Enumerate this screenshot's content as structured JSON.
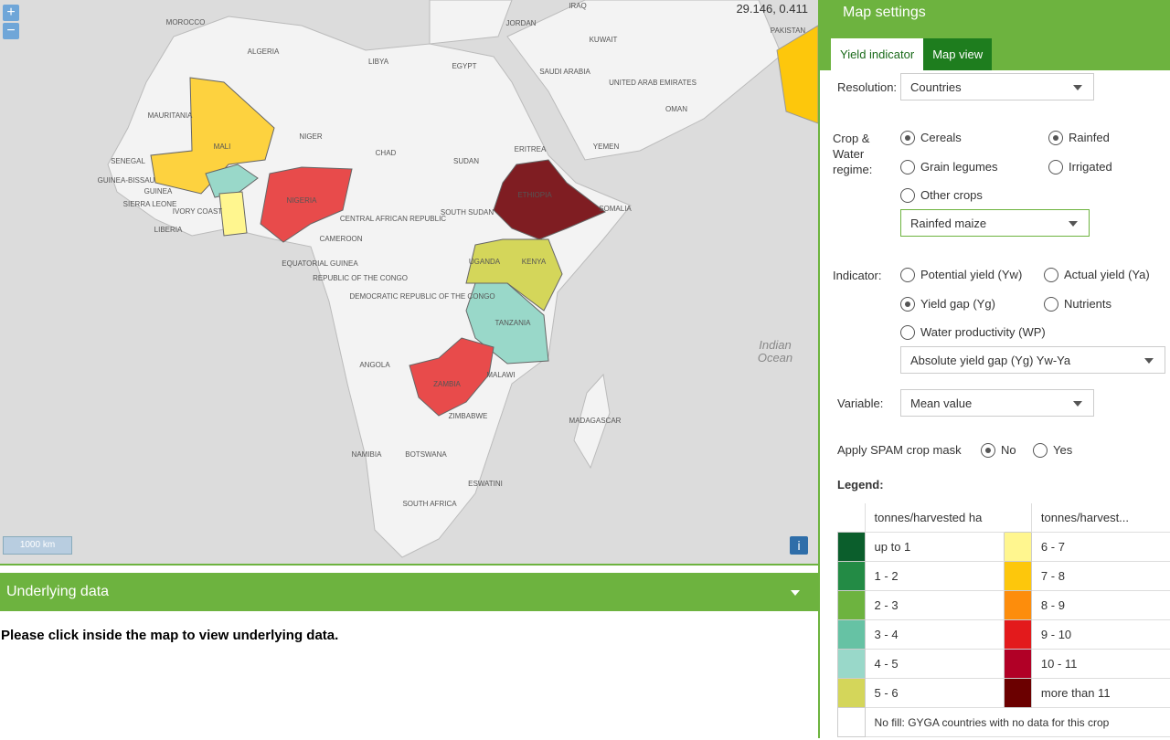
{
  "map": {
    "coords": "29.146, 0.411",
    "zoom_in": "+",
    "zoom_out": "−",
    "scale": "1000 km",
    "info": "i",
    "ocean": [
      "Indian",
      "Ocean"
    ],
    "labels": [
      "MOROCCO",
      "ALGERIA",
      "LIBYA",
      "EGYPT",
      "JORDAN",
      "IRAQ",
      "KUWAIT",
      "SAUDI ARABIA",
      "UNITED ARAB EMIRATES",
      "OMAN",
      "YEMEN",
      "PAKISTAN",
      "MAURITANIA",
      "MALI",
      "NIGER",
      "CHAD",
      "SUDAN",
      "ERITREA",
      "SENEGAL",
      "GUINEA-BISSAU",
      "GUINEA",
      "SIERRA LEONE",
      "IVORY COAST",
      "LIBERIA",
      "NIGERIA",
      "ETHIOPIA",
      "SOMALIA",
      "SOUTH SUDAN",
      "CENTRAL AFRICAN REPUBLIC",
      "CAMEROON",
      "EQUATORIAL GUINEA",
      "REPUBLIC OF THE CONGO",
      "DEMOCRATIC REPUBLIC OF THE CONGO",
      "UGANDA",
      "KENYA",
      "TANZANIA",
      "ANGOLA",
      "MALAWI",
      "ZAMBIA",
      "ZIMBABWE",
      "MADAGASCAR",
      "NAMIBIA",
      "BOTSWANA",
      "ESWATINI",
      "SOUTH AFRICA"
    ]
  },
  "underlying": {
    "title": "Underlying data",
    "message": "Please click inside the map to view underlying data."
  },
  "settings": {
    "title": "Map settings",
    "tabs": [
      "Yield indicator",
      "Map view"
    ],
    "resolution_label": "Resolution:",
    "resolution_value": "Countries",
    "crop_label": "Crop & Water regime:",
    "crops": [
      "Cereals",
      "Grain legumes",
      "Other crops"
    ],
    "water": [
      "Rainfed",
      "Irrigated"
    ],
    "crop_select": "Rainfed maize",
    "indicator_label": "Indicator:",
    "indicators": [
      "Potential yield (Yw)",
      "Actual yield (Ya)",
      "Yield gap (Yg)",
      "Nutrients",
      "Water productivity (WP)"
    ],
    "indicator_select": "Absolute yield gap (Yg) Yw-Ya",
    "variable_label": "Variable:",
    "variable_value": "Mean value",
    "spam_label": "Apply SPAM crop mask",
    "spam_options": [
      "No",
      "Yes"
    ],
    "legend_title": "Legend:",
    "legend_headers": [
      "tonnes/harvested ha",
      "tonnes/harvest..."
    ],
    "legend": [
      {
        "label": "up to 1",
        "color": "#0b5e2c"
      },
      {
        "label": "1 - 2",
        "color": "#238b45"
      },
      {
        "label": "2 - 3",
        "color": "#6db33f"
      },
      {
        "label": "3 - 4",
        "color": "#66c2a4"
      },
      {
        "label": "4 - 5",
        "color": "#99d8c9"
      },
      {
        "label": "5 - 6",
        "color": "#d4d65a"
      },
      {
        "label": "6 - 7",
        "color": "#fff68f"
      },
      {
        "label": "7 - 8",
        "color": "#fdc70c"
      },
      {
        "label": "8 - 9",
        "color": "#fd8d0c"
      },
      {
        "label": "9 - 10",
        "color": "#e31a1c"
      },
      {
        "label": "10 - 11",
        "color": "#b10026"
      },
      {
        "label": "more than 11",
        "color": "#6b0000"
      }
    ],
    "nofill": "No fill: GYGA countries with no data for this crop"
  }
}
